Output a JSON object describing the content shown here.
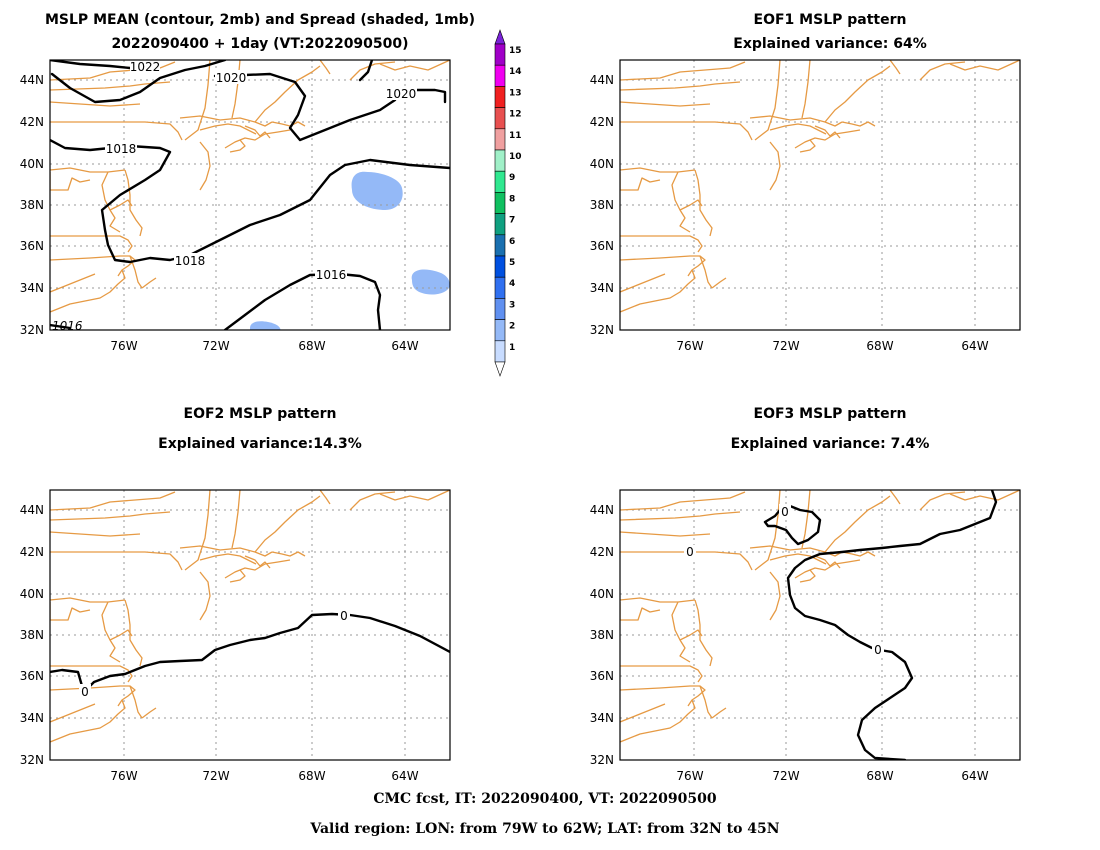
{
  "panels": [
    {
      "key": "mean",
      "title_lines": [
        "MSLP MEAN (contour, 2mb) and Spread (shaded, 1mb)",
        "2022090400 + 1day (VT:2022090500)"
      ],
      "contour_labels": [
        "1022",
        "1020",
        "1020",
        "1018",
        "1018",
        "1016",
        "1016"
      ],
      "spread_label_note": "shaded areas = spread"
    },
    {
      "key": "eof1",
      "title_lines": [
        "EOF1 MSLP pattern",
        "Explained variance: 64%"
      ],
      "contour_labels": []
    },
    {
      "key": "eof2",
      "title_lines": [
        "EOF2 MSLP pattern",
        "Explained variance:14.3%"
      ],
      "contour_labels": [
        "0",
        "0"
      ]
    },
    {
      "key": "eof3",
      "title_lines": [
        "EOF3 MSLP pattern",
        "Explained variance: 7.4%"
      ],
      "contour_labels": [
        "0",
        "0",
        "0"
      ]
    }
  ],
  "axes": {
    "lat_labels": [
      "44N",
      "42N",
      "40N",
      "38N",
      "36N",
      "34N",
      "32N"
    ],
    "lon_labels": [
      "76W",
      "72W",
      "68W",
      "64W"
    ]
  },
  "colorbar": {
    "labels": [
      "15",
      "14",
      "13",
      "12",
      "11",
      "10",
      "9",
      "8",
      "7",
      "6",
      "5",
      "4",
      "3",
      "2",
      "1"
    ],
    "colors": [
      "#a000c8",
      "#f000f0",
      "#f02020",
      "#e85050",
      "#f0a0a0",
      "#a0f0c8",
      "#30e890",
      "#10c060",
      "#10a080",
      "#1a70b0",
      "#0050e0",
      "#3070f0",
      "#6090f0",
      "#94b9f7",
      "#c8dcff"
    ]
  },
  "footer": {
    "line1": "CMC fcst, IT: 2022090400, VT: 2022090500",
    "line2": "Valid region: LON: from 79W to 62W; LAT: from 32N to 45N"
  }
}
